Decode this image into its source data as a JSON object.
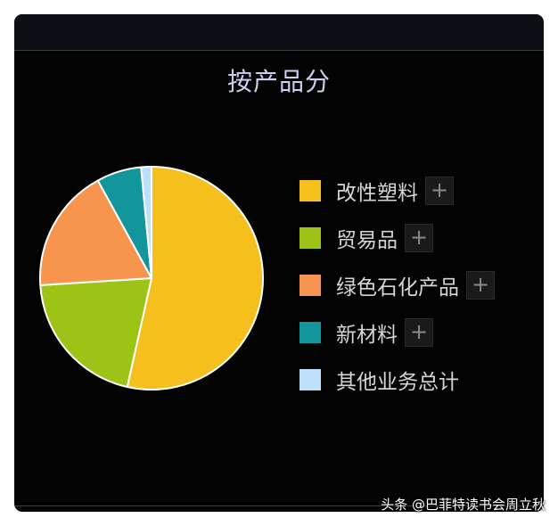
{
  "chart_data": {
    "type": "pie",
    "title": "按产品分",
    "categories": [
      "改性塑料",
      "贸易品",
      "绿色石化产品",
      "新材料",
      "其他业务总计"
    ],
    "values": [
      53.5,
      20.5,
      18.0,
      6.5,
      1.5
    ],
    "colors": [
      "#f5bf1d",
      "#9dc316",
      "#f7954f",
      "#12969b",
      "#bfe0fb"
    ],
    "slice_border_color": "#ffffff",
    "legend_position": "right",
    "expandable": [
      true,
      true,
      true,
      true,
      false
    ]
  },
  "legend": {
    "expand_symbol": "+",
    "items": [
      {
        "label": "改性塑料",
        "color": "#f5bf1d"
      },
      {
        "label": "贸易品",
        "color": "#9dc316"
      },
      {
        "label": "绿色石化产品",
        "color": "#f7954f"
      },
      {
        "label": "新材料",
        "color": "#12969b"
      },
      {
        "label": "其他业务总计",
        "color": "#bfe0fb"
      }
    ]
  },
  "watermark": "头条 @巴菲特读书会周立秋"
}
